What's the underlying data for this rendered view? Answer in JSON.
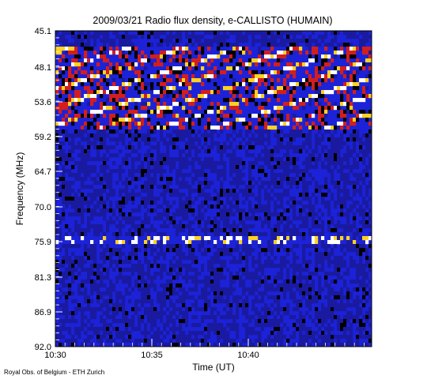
{
  "chart_data": {
    "type": "heatmap",
    "title": "2009/03/21  Radio flux density, e-CALLISTO (HUMAIN)",
    "xlabel": "Time (UT)",
    "ylabel": "Frequency (MHz)",
    "x_ticks": [
      "10:30",
      "10:35",
      "10:40"
    ],
    "y_ticks": [
      "45.1",
      "48.1",
      "53.6",
      "59.2",
      "64.7",
      "70.0",
      "75.9",
      "81.3",
      "86.9",
      "92.0"
    ],
    "x_range": [
      "10:30",
      "10:46"
    ],
    "ylim": [
      45.1,
      92.0
    ],
    "y_inverted": true,
    "colormap": [
      "#000000",
      "#1a1aa0",
      "#1f24e6",
      "#d21e1e",
      "#ffd21e",
      "#ffffff"
    ],
    "notable_features": [
      {
        "kind": "drifting bright bands",
        "freq_range_mhz": [
          48.1,
          59.2
        ]
      },
      {
        "kind": "intermittent bright line",
        "freq_mhz": 75.9
      }
    ]
  },
  "credit": "Royal Obs. of Belgium - ETH Zurich"
}
